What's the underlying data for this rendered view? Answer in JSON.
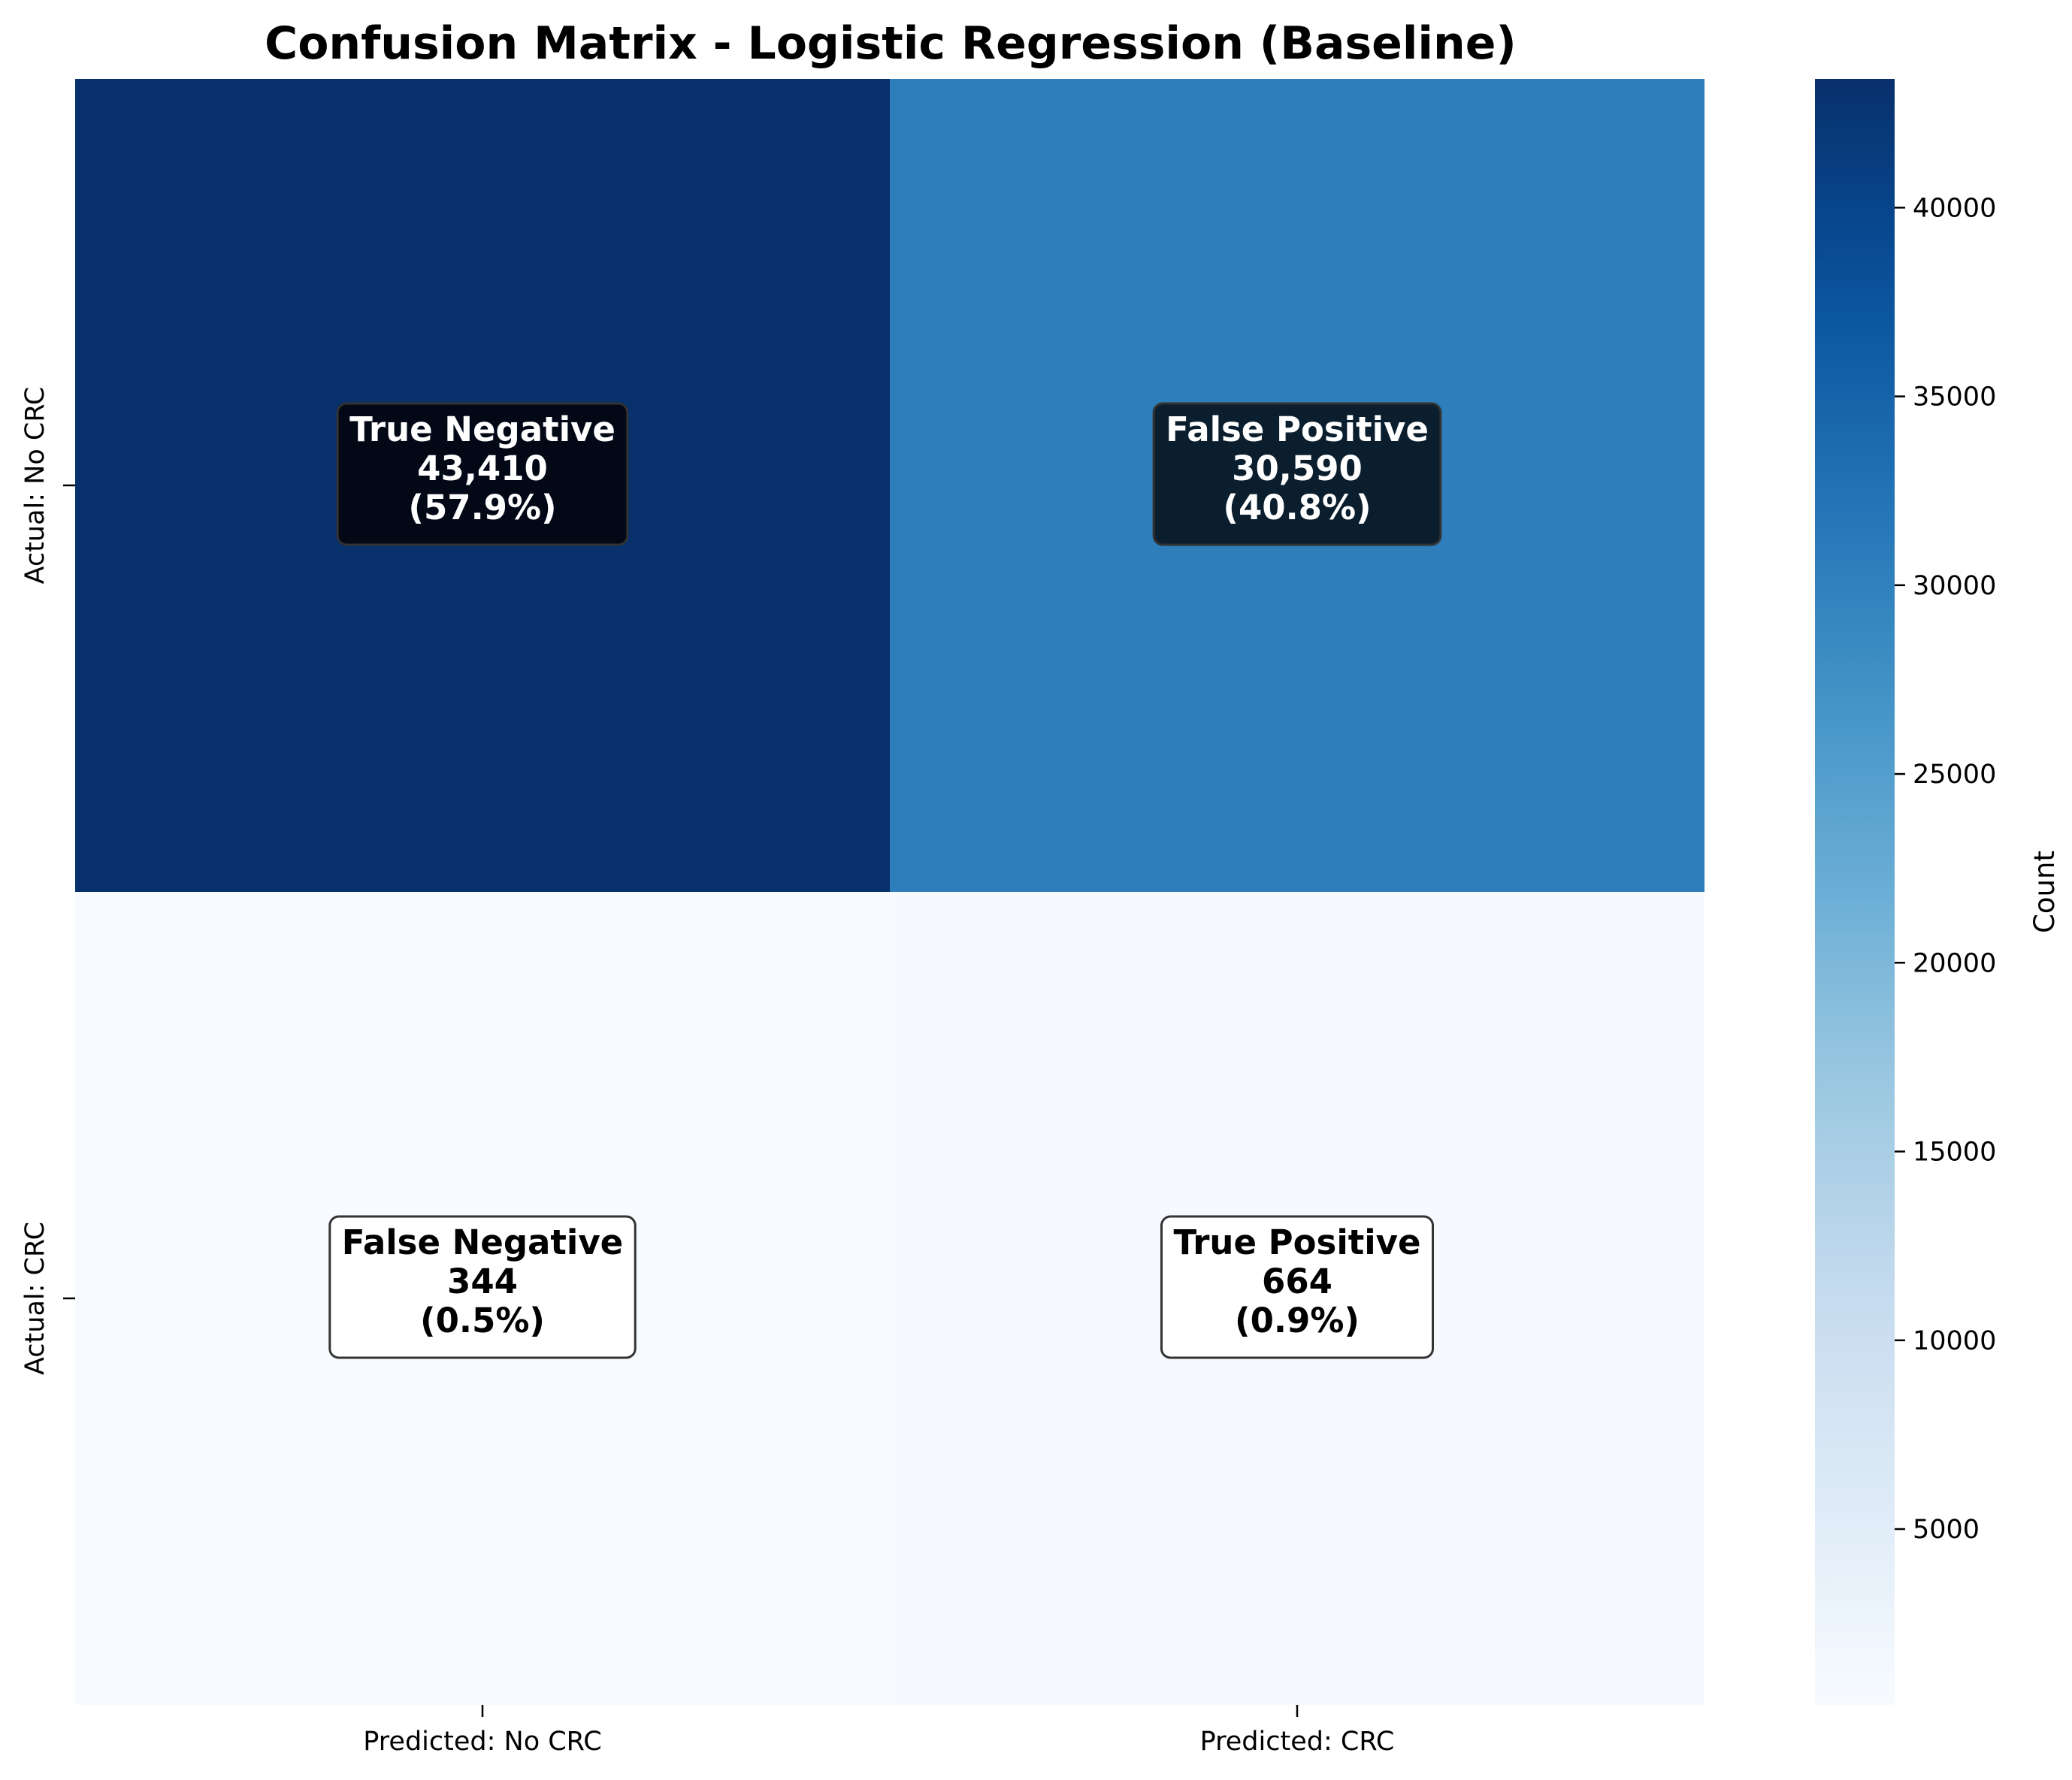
{
  "chart_data": {
    "type": "heatmap",
    "title": "Confusion Matrix - Logistic Regression (Baseline)",
    "rows": [
      "Actual: No CRC",
      "Actual: CRC"
    ],
    "columns": [
      "Predicted: No CRC",
      "Predicted: CRC"
    ],
    "values": [
      [
        43410,
        30590
      ],
      [
        344,
        664
      ]
    ],
    "cells": [
      [
        {
          "name": "True Negative",
          "count": "43,410",
          "percent": "(57.9%)"
        },
        {
          "name": "False Positive",
          "count": "30,590",
          "percent": "(40.8%)"
        }
      ],
      [
        {
          "name": "False Negative",
          "count": "344",
          "percent": "(0.5%)"
        },
        {
          "name": "True Positive",
          "count": "664",
          "percent": "(0.9%)"
        }
      ]
    ],
    "colorbar": {
      "label": "Count",
      "range": [
        344,
        43410
      ],
      "ticks": [
        5000,
        10000,
        15000,
        20000,
        25000,
        30000,
        35000,
        40000
      ],
      "colormap": "Blues"
    }
  }
}
